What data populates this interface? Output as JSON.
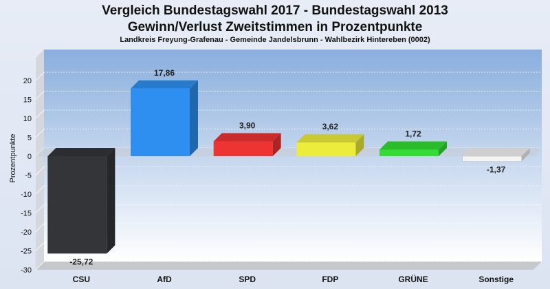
{
  "chart_data": {
    "type": "bar",
    "title_line1": "Vergleich Bundestagswahl 2017 - Bundestagswahl 2013",
    "title_line2": "Gewinn/Verlust Zweitstimmen in Prozentpunkte",
    "subtitle": "Landkreis Freyung-Grafenau - Gemeinde Jandelsbrunn - Wahlbezirk Hintereben (0002)",
    "ylabel": "Prozentpunkte",
    "ylim": [
      -30,
      20
    ],
    "yticks": [
      20,
      15,
      10,
      5,
      0,
      -5,
      -10,
      -15,
      -20,
      -25,
      -30
    ],
    "grid": true,
    "categories": [
      "CSU",
      "AfD",
      "SPD",
      "FDP",
      "GRÜNE",
      "Sonstige"
    ],
    "values": [
      -25.72,
      17.86,
      3.9,
      3.62,
      1.72,
      -1.37
    ],
    "value_labels": [
      "-25,72",
      "17,86",
      "3,90",
      "3,62",
      "1,72",
      "-1,37"
    ],
    "colors": [
      "#333538",
      "#2e8ff0",
      "#ee3333",
      "#ecec3a",
      "#33dd33",
      "#f4f4f4"
    ]
  }
}
